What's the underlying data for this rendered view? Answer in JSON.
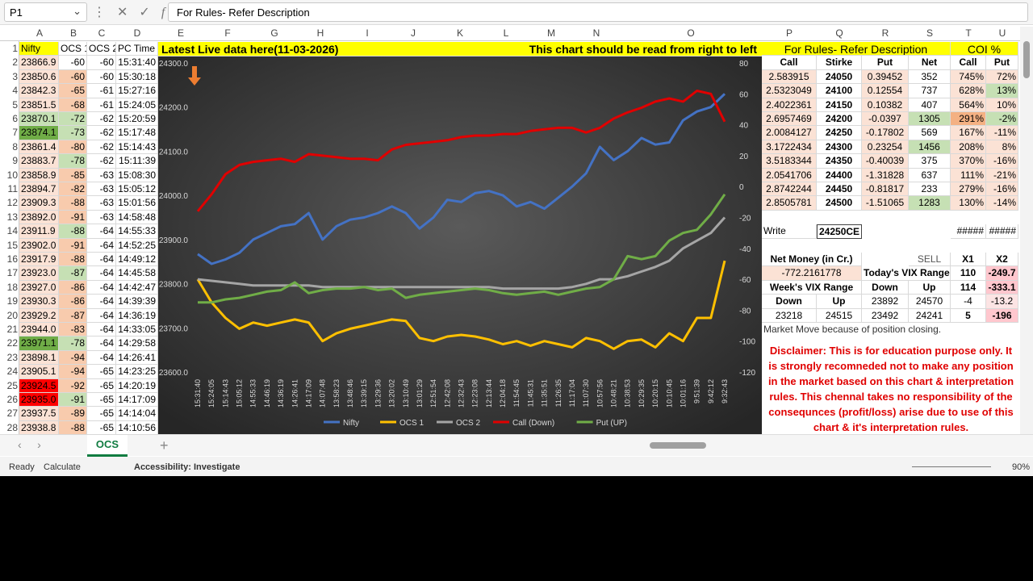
{
  "formula_bar": {
    "name_box": "P1",
    "formula": "For Rules- Refer Description"
  },
  "column_headers": [
    "A",
    "B",
    "C",
    "D",
    "E",
    "F",
    "G",
    "H",
    "I",
    "J",
    "K",
    "L",
    "M",
    "N",
    "O",
    "P",
    "Q",
    "R",
    "S",
    "T",
    "U"
  ],
  "row_numbers": [
    1,
    2,
    3,
    4,
    5,
    6,
    7,
    8,
    9,
    10,
    11,
    12,
    13,
    14,
    15,
    16,
    17,
    18,
    19,
    20,
    21,
    22,
    23,
    24,
    25,
    26,
    27,
    28
  ],
  "left_table": {
    "headers": [
      "Nifty",
      "OCS 1",
      "OCS 2",
      "PC Time"
    ],
    "rows": [
      [
        "23866.9",
        "-60",
        "-60",
        "15:31:40"
      ],
      [
        "23850.6",
        "-60",
        "-60",
        "15:30:18"
      ],
      [
        "23842.3",
        "-65",
        "-61",
        "15:27:16"
      ],
      [
        "23851.5",
        "-68",
        "-61",
        "15:24:05"
      ],
      [
        "23870.1",
        "-72",
        "-62",
        "15:20:59"
      ],
      [
        "23874.1",
        "-73",
        "-62",
        "15:17:48"
      ],
      [
        "23861.4",
        "-80",
        "-62",
        "15:14:43"
      ],
      [
        "23883.7",
        "-78",
        "-62",
        "15:11:39"
      ],
      [
        "23858.9",
        "-85",
        "-63",
        "15:08:30"
      ],
      [
        "23894.7",
        "-82",
        "-63",
        "15:05:12"
      ],
      [
        "23909.3",
        "-88",
        "-63",
        "15:01:56"
      ],
      [
        "23892.0",
        "-91",
        "-63",
        "14:58:48"
      ],
      [
        "23911.9",
        "-88",
        "-64",
        "14:55:33"
      ],
      [
        "23902.0",
        "-91",
        "-64",
        "14:52:25"
      ],
      [
        "23917.9",
        "-88",
        "-64",
        "14:49:12"
      ],
      [
        "23923.0",
        "-87",
        "-64",
        "14:45:58"
      ],
      [
        "23927.0",
        "-86",
        "-64",
        "14:42:47"
      ],
      [
        "23930.3",
        "-86",
        "-64",
        "14:39:39"
      ],
      [
        "23929.2",
        "-87",
        "-64",
        "14:36:19"
      ],
      [
        "23944.0",
        "-83",
        "-64",
        "14:33:05"
      ],
      [
        "23971.1",
        "-78",
        "-64",
        "14:29:58"
      ],
      [
        "23898.1",
        "-94",
        "-64",
        "14:26:41"
      ],
      [
        "23905.1",
        "-94",
        "-65",
        "14:23:25"
      ],
      [
        "23924.5",
        "-92",
        "-65",
        "14:20:19"
      ],
      [
        "23935.0",
        "-91",
        "-65",
        "14:17:09"
      ],
      [
        "23937.5",
        "-89",
        "-65",
        "14:14:04"
      ],
      [
        "23938.8",
        "-88",
        "-65",
        "14:10:56"
      ]
    ],
    "nifty_fills": [
      "#fbe2d5",
      "#fbe2d5",
      "#fbe2d5",
      "#fbe2d5",
      "#c6e0b4",
      "#70ad47",
      "#fbe2d5",
      "#fbe2d5",
      "#fbe2d5",
      "#fbe2d5",
      "#fbe2d5",
      "#fbe2d5",
      "#fbe2d5",
      "#fbe2d5",
      "#fbe2d5",
      "#fbe2d5",
      "#fbe2d5",
      "#fbe2d5",
      "#fbe2d5",
      "#fbe2d5",
      "#70ad47",
      "#fbe2d5",
      "#fbe2d5",
      "#ff0000",
      "#ff0000",
      "#fbe2d5",
      "#fbe2d5"
    ],
    "ocs1_fills": [
      "#ffffff",
      "#f8cbad",
      "#f8cbad",
      "#f8cbad",
      "#c6e0b4",
      "#c6e0b4",
      "#f8cbad",
      "#c6e0b4",
      "#f8cbad",
      "#f8cbad",
      "#f8cbad",
      "#f8cbad",
      "#c6e0b4",
      "#f8cbad",
      "#f8cbad",
      "#c6e0b4",
      "#f8cbad",
      "#f8cbad",
      "#f8cbad",
      "#f8cbad",
      "#c6e0b4",
      "#f8cbad",
      "#f8cbad",
      "#f8cbad",
      "#c6e0b4",
      "#f8cbad",
      "#f8cbad"
    ]
  },
  "banner": {
    "left": "Latest Live data here(11-03-2026)",
    "right": "This chart should be read from right to left"
  },
  "chart_data": {
    "type": "line",
    "categories": [
      "15:31:40",
      "15:24:05",
      "15:14:43",
      "15:05:12",
      "14:55:33",
      "14:46:19",
      "14:36:19",
      "14:26:41",
      "14:17:09",
      "14:07:48",
      "13:58:23",
      "13:48:46",
      "13:39:15",
      "13:29:36",
      "13:20:02",
      "13:10:49",
      "13:01:29",
      "12:51:54",
      "12:42:08",
      "12:32:43",
      "12:23:08",
      "12:13:44",
      "12:04:18",
      "11:54:45",
      "11:45:31",
      "11:35:51",
      "11:26:35",
      "11:17:04",
      "11:07:30",
      "10:57:56",
      "10:48:21",
      "10:38:53",
      "10:29:35",
      "10:20:15",
      "10:10:45",
      "10:01:16",
      "9:51:39",
      "9:42:12",
      "9:32:43"
    ],
    "series": [
      {
        "name": "Nifty",
        "color": "#4472c4",
        "axis": "y",
        "values": [
          23867,
          23845,
          23855,
          23870,
          23900,
          23915,
          23930,
          23935,
          23960,
          23900,
          23930,
          23945,
          23950,
          23960,
          23975,
          23960,
          23925,
          23950,
          23990,
          23985,
          24005,
          24010,
          24000,
          23975,
          23985,
          23970,
          23995,
          24020,
          24050,
          24110,
          24080,
          24100,
          24130,
          24115,
          24120,
          24170,
          24190,
          24200,
          24230
        ]
      },
      {
        "name": "OCS 1",
        "color": "#ffc000",
        "axis": "y2",
        "values": [
          -60,
          -75,
          -85,
          -92,
          -88,
          -90,
          -88,
          -86,
          -88,
          -100,
          -95,
          -92,
          -90,
          -88,
          -86,
          -87,
          -98,
          -100,
          -97,
          -96,
          -97,
          -99,
          -102,
          -100,
          -103,
          -100,
          -102,
          -104,
          -98,
          -100,
          -105,
          -100,
          -99,
          -104,
          -95,
          -100,
          -85,
          -85,
          -48
        ]
      },
      {
        "name": "OCS 2",
        "color": "#a5a5a5",
        "axis": "y2",
        "values": [
          -60,
          -61,
          -62,
          -63,
          -64,
          -64,
          -64,
          -64,
          -64,
          -65,
          -65,
          -65,
          -65,
          -65,
          -65,
          -65,
          -65,
          -65,
          -65,
          -65,
          -65,
          -65,
          -66,
          -66,
          -66,
          -66,
          -66,
          -65,
          -63,
          -60,
          -60,
          -58,
          -55,
          -52,
          -48,
          -40,
          -35,
          -30,
          -20
        ]
      },
      {
        "name": "Call (Down)",
        "color": "#e00000",
        "axis": "y2",
        "values": [
          -16,
          -5,
          8,
          14,
          16,
          17,
          18,
          16,
          21,
          20,
          19,
          18,
          18,
          17,
          24,
          27,
          28,
          29,
          30,
          32,
          33,
          33,
          34,
          34,
          36,
          37,
          38,
          38,
          35,
          38,
          44,
          48,
          51,
          55,
          57,
          55,
          62,
          60,
          42
        ]
      },
      {
        "name": "Put (UP)",
        "color": "#70ad47",
        "axis": "y2",
        "values": [
          -75,
          -75,
          -73,
          -72,
          -70,
          -68,
          -67,
          -62,
          -69,
          -67,
          -66,
          -66,
          -65,
          -67,
          -66,
          -72,
          -70,
          -69,
          -68,
          -67,
          -66,
          -67,
          -69,
          -70,
          -69,
          -68,
          -70,
          -68,
          -66,
          -65,
          -60,
          -45,
          -47,
          -45,
          -35,
          -30,
          -28,
          -18,
          -5
        ]
      }
    ],
    "ylim": [
      23600,
      24300
    ],
    "yticks": [
      {
        "value": 23600,
        "label": "23600.0"
      },
      {
        "value": 23700,
        "label": "23700.0"
      },
      {
        "value": 23800,
        "label": "23800.0"
      },
      {
        "value": 23900,
        "label": "23900.0"
      },
      {
        "value": 24000,
        "label": "24000.0"
      },
      {
        "value": 24100,
        "label": "24100.0"
      },
      {
        "value": 24200,
        "label": "24200.0"
      },
      {
        "value": 24300,
        "label": "24300.0"
      }
    ],
    "y2lim": [
      -120,
      80
    ],
    "y2ticks": [
      -120,
      -100,
      -80,
      -60,
      -40,
      -20,
      0,
      20,
      40,
      60,
      80
    ],
    "grid": false,
    "legend": "bottom"
  },
  "right_panel": {
    "title": "For Rules- Refer Description",
    "coi_title": "COI %",
    "headers": [
      "Call",
      "Stirke",
      "Put",
      "Net",
      "Call",
      "Put"
    ],
    "rows": [
      [
        "2.583915",
        "24050",
        "0.39452",
        "352",
        "745%",
        "72%"
      ],
      [
        "2.5323049",
        "24100",
        "0.12554",
        "737",
        "628%",
        "13%"
      ],
      [
        "2.4022361",
        "24150",
        "0.10382",
        "407",
        "564%",
        "10%"
      ],
      [
        "2.6957469",
        "24200",
        "-0.0397",
        "1305",
        "291%",
        "-2%"
      ],
      [
        "2.0084127",
        "24250",
        "-0.17802",
        "569",
        "167%",
        "-11%"
      ],
      [
        "3.1722434",
        "24300",
        "0.23254",
        "1456",
        "208%",
        "8%"
      ],
      [
        "3.5183344",
        "24350",
        "-0.40039",
        "375",
        "370%",
        "-16%"
      ],
      [
        "2.0541706",
        "24400",
        "-1.31828",
        "637",
        "111%",
        "-21%"
      ],
      [
        "2.8742244",
        "24450",
        "-0.81817",
        "233",
        "279%",
        "-16%"
      ],
      [
        "2.8505781",
        "24500",
        "-1.51065",
        "1283",
        "130%",
        "-14%"
      ]
    ],
    "fills": [
      [
        "#fbe2d5",
        null,
        "#fbe2d5",
        null,
        "#fbe2d5",
        "#fbe2d5"
      ],
      [
        "#fbe2d5",
        null,
        "#fbe2d5",
        null,
        "#fbe2d5",
        "#c6e0b4"
      ],
      [
        "#fbe2d5",
        null,
        "#fbe2d5",
        null,
        "#fbe2d5",
        "#fbe2d5"
      ],
      [
        "#fbe2d5",
        null,
        "#fbe2d5",
        "#c6e0b4",
        "#f4b183",
        "#c6e0b4"
      ],
      [
        "#fbe2d5",
        null,
        "#fbe2d5",
        null,
        "#fbe2d5",
        "#fbe2d5"
      ],
      [
        "#fbe2d5",
        null,
        "#fbe2d5",
        "#c6e0b4",
        "#fbe2d5",
        "#fbe2d5"
      ],
      [
        "#fbe2d5",
        null,
        "#fbe2d5",
        null,
        "#fbe2d5",
        "#fbe2d5"
      ],
      [
        "#fbe2d5",
        null,
        "#fbe2d5",
        null,
        "#fbe2d5",
        "#fbe2d5"
      ],
      [
        "#fbe2d5",
        null,
        "#fbe2d5",
        null,
        "#fbe2d5",
        "#fbe2d5"
      ],
      [
        "#fbe2d5",
        null,
        "#fbe2d5",
        "#c6e0b4",
        "#fbe2d5",
        "#fbe2d5"
      ]
    ],
    "write_row": [
      "Write",
      "24250CE",
      "#####",
      "#####"
    ],
    "money_rows": [
      [
        "Net Money (in Cr.)",
        "SELL",
        "X1",
        "X2"
      ],
      [
        "-772.2161778",
        "Today's VIX Range",
        "110",
        "-249.7"
      ],
      [
        "Week's VIX Range",
        "Down",
        "Up",
        "114",
        "-333.1"
      ],
      [
        "Down",
        "Up",
        "23892",
        "24570",
        "-4",
        "-13.2"
      ],
      [
        "23218",
        "24515",
        "23492",
        "24241",
        "5",
        "-196"
      ]
    ],
    "note": "Market Move because of position closing.",
    "disclaimer": "Disclaimer: This is for education purpose only.   It is strongly recomneded not to make any position in the market based on this chart & interpretation rules. This chennal takes no responsibility of the consequnces (profit/loss) arise due to use of this chart & it's interpretation rules."
  },
  "sheet_tab": "OCS",
  "status": {
    "ready": "Ready",
    "calculate": "Calculate",
    "accessibility": "Accessibility: Investigate",
    "zoom": "90%"
  }
}
